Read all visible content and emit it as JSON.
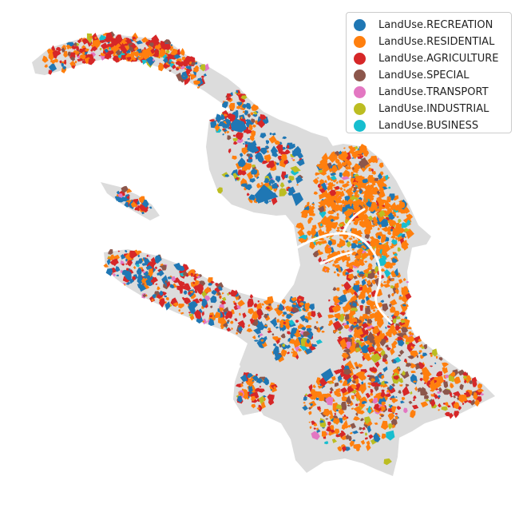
{
  "map": {
    "categories": [
      {
        "label": "LandUse.RECREATION",
        "color": "#1f77b4"
      },
      {
        "label": "LandUse.RESIDENTIAL",
        "color": "#ff7f0e"
      },
      {
        "label": "LandUse.AGRICULTURE",
        "color": "#d62728"
      },
      {
        "label": "LandUse.SPECIAL",
        "color": "#8c564b"
      },
      {
        "label": "LandUse.TRANSPORT",
        "color": "#e377c2"
      },
      {
        "label": "LandUse.INDUSTRIAL",
        "color": "#bcbd22"
      },
      {
        "label": "LandUse.BUSINESS",
        "color": "#17becf"
      }
    ],
    "unclassified_color": "#dcdcdc",
    "river_color": "#ffffff"
  }
}
